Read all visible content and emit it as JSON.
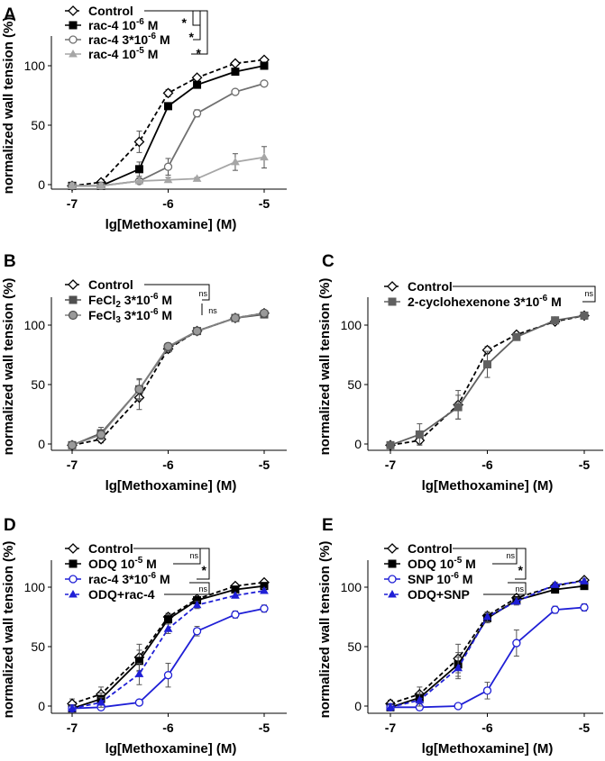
{
  "figure": {
    "colors": {
      "black": "#000000",
      "gray": "#707070",
      "light_gray": "#a6a6a6",
      "blue": "#1f1fd6",
      "white": "#ffffff"
    }
  },
  "chart_data": [
    {
      "panel": "A",
      "type": "line",
      "xlabel": "lg[Methoxamine] (M)",
      "ylabel": "normalized wall tension (%)",
      "xlim": [
        -7,
        -5
      ],
      "ylim": [
        -5,
        120
      ],
      "xticks": [
        "-7",
        "-6",
        "-5"
      ],
      "yticks": [
        "0",
        "50",
        "100"
      ],
      "x": [
        -7,
        -6.699,
        -6.301,
        -6,
        -5.699,
        -5.301,
        -5
      ],
      "series": [
        {
          "name": "Control",
          "sup": "",
          "tail": "",
          "marker": "diamond-open",
          "color": "#000000",
          "dash": true,
          "values": [
            -1,
            2,
            36,
            77,
            90,
            102,
            105
          ],
          "errors": [
            1,
            1,
            9,
            3,
            2,
            1,
            1
          ]
        },
        {
          "name": "rac-4 10",
          "sup": "-6",
          "tail": " M",
          "marker": "square-filled",
          "color": "#000000",
          "dash": false,
          "values": [
            -1,
            -1,
            13,
            66,
            84,
            95,
            100
          ],
          "errors": [
            1,
            1,
            6,
            2,
            2,
            1,
            1
          ]
        },
        {
          "name": "rac-4 3*10",
          "sup": "-6",
          "tail": " M",
          "marker": "circle-open",
          "color": "#707070",
          "dash": false,
          "values": [
            -1,
            -1,
            3,
            15,
            60,
            78,
            85
          ],
          "errors": [
            1,
            1,
            2,
            7,
            3,
            2,
            2
          ]
        },
        {
          "name": "rac-4 10",
          "sup": "-5",
          "tail": " M",
          "marker": "triangle-filled",
          "color": "#a6a6a6",
          "dash": false,
          "values": [
            -1,
            -1,
            3,
            4,
            5,
            19,
            23
          ],
          "errors": [
            1,
            1,
            2,
            2,
            1,
            7,
            9
          ]
        }
      ],
      "significance": [
        "*",
        "*",
        "*"
      ]
    },
    {
      "panel": "B",
      "type": "line",
      "xlabel": "lg[Methoxamine] (M)",
      "ylabel": "normalized wall tension (%)",
      "xlim": [
        -7,
        -5
      ],
      "ylim": [
        -5,
        120
      ],
      "xticks": [
        "-7",
        "-6",
        "-5"
      ],
      "yticks": [
        "0",
        "50",
        "100"
      ],
      "x": [
        -7,
        -6.699,
        -6.301,
        -6,
        -5.699,
        -5.301,
        -5
      ],
      "series": [
        {
          "name": "Control",
          "sup": "",
          "tail": "",
          "marker": "diamond-open",
          "color": "#000000",
          "dash": true,
          "values": [
            -1,
            4,
            39,
            80,
            95,
            106,
            110
          ],
          "errors": [
            1,
            3,
            10,
            3,
            2,
            2,
            1
          ]
        },
        {
          "name": "FeCl",
          "sub": "2",
          "sup": "-6",
          "tail": " M",
          "pre_sup": " 3*10",
          "marker": "square-filled",
          "color": "#505050",
          "dash": false,
          "values": [
            -1,
            9,
            46,
            81,
            95,
            106,
            109
          ],
          "errors": [
            1,
            5,
            8,
            3,
            2,
            2,
            1
          ]
        },
        {
          "name": "FeCl",
          "sub": "3",
          "sup": "-6",
          "tail": " M",
          "pre_sup": " 3*10",
          "marker": "circle-gray",
          "color": "#808080",
          "dash": false,
          "values": [
            -1,
            8,
            46,
            82,
            95,
            106,
            110
          ],
          "errors": [
            1,
            4,
            9,
            3,
            2,
            2,
            1
          ]
        }
      ],
      "significance": [
        "ns",
        "ns"
      ]
    },
    {
      "panel": "C",
      "type": "line",
      "xlabel": "lg[Methoxamine] (M)",
      "ylabel": "normalized wall tension (%)",
      "xlim": [
        -7,
        -5
      ],
      "ylim": [
        -5,
        120
      ],
      "xticks": [
        "-7",
        "-6",
        "-5"
      ],
      "yticks": [
        "0",
        "50",
        "100"
      ],
      "x": [
        -7,
        -6.699,
        -6.301,
        -6,
        -5.699,
        -5.301,
        -5
      ],
      "series": [
        {
          "name": "Control",
          "sup": "",
          "tail": "",
          "marker": "diamond-open",
          "color": "#000000",
          "dash": true,
          "values": [
            -1,
            3,
            33,
            79,
            92,
            103,
            108
          ],
          "errors": [
            1,
            3,
            12,
            3,
            2,
            2,
            2
          ]
        },
        {
          "name": "2-cyclohexenone 3*10",
          "sup": "-6",
          "tail": " M",
          "marker": "square-filled",
          "color": "#606060",
          "dash": false,
          "values": [
            -1,
            8,
            31,
            67,
            90,
            104,
            108
          ],
          "errors": [
            1,
            9,
            10,
            11,
            2,
            2,
            3
          ]
        }
      ],
      "significance": [
        "ns"
      ]
    },
    {
      "panel": "D",
      "type": "line",
      "xlabel": "lg[Methoxamine] (M)",
      "ylabel": "normalized wall tension (%)",
      "xlim": [
        -7,
        -5
      ],
      "ylim": [
        -5,
        120
      ],
      "xticks": [
        "-7",
        "-6",
        "-5"
      ],
      "yticks": [
        "0",
        "50",
        "100"
      ],
      "x": [
        -7,
        -6.699,
        -6.301,
        -6,
        -5.699,
        -5.301,
        -5
      ],
      "series": [
        {
          "name": "Control",
          "sup": "",
          "tail": "",
          "marker": "diamond-open",
          "color": "#000000",
          "dash": true,
          "values": [
            2,
            10,
            41,
            75,
            90,
            101,
            104
          ],
          "errors": [
            4,
            6,
            11,
            3,
            2,
            2,
            1
          ]
        },
        {
          "name": "ODQ 10",
          "sup": "-5",
          "tail": " M",
          "marker": "square-filled",
          "color": "#000000",
          "dash": false,
          "values": [
            -2,
            6,
            38,
            73,
            89,
            98,
            101
          ],
          "errors": [
            2,
            5,
            9,
            4,
            3,
            2,
            2
          ]
        },
        {
          "name": "rac-4 3*10",
          "sup": "-6",
          "tail": " M",
          "marker": "circle-open",
          "color": "#1f1fd6",
          "dash": false,
          "values": [
            -2,
            -1,
            3,
            26,
            63,
            77,
            82
          ],
          "errors": [
            1,
            1,
            2,
            10,
            4,
            3,
            3
          ]
        },
        {
          "name": "ODQ+rac-4",
          "sup": "",
          "tail": "",
          "marker": "triangle-filled",
          "color": "#1f1fd6",
          "dash": true,
          "values": [
            -2,
            3,
            27,
            65,
            85,
            93,
            97
          ],
          "errors": [
            2,
            4,
            9,
            4,
            3,
            2,
            2
          ]
        }
      ],
      "significance": [
        "ns",
        "*",
        "ns"
      ]
    },
    {
      "panel": "E",
      "type": "line",
      "xlabel": "lg[Methoxamine] (M)",
      "ylabel": "normalized wall tension (%)",
      "xlim": [
        -7,
        -5
      ],
      "ylim": [
        -5,
        120
      ],
      "xticks": [
        "-7",
        "-6",
        "-5"
      ],
      "yticks": [
        "0",
        "50",
        "100"
      ],
      "x": [
        -7,
        -6.699,
        -6.301,
        -6,
        -5.699,
        -5.301,
        -5
      ],
      "series": [
        {
          "name": "Control",
          "sup": "",
          "tail": "",
          "marker": "diamond-open",
          "color": "#000000",
          "dash": true,
          "values": [
            2,
            10,
            40,
            76,
            91,
            101,
            106
          ],
          "errors": [
            3,
            6,
            12,
            3,
            2,
            2,
            2
          ]
        },
        {
          "name": "ODQ 10",
          "sup": "-5",
          "tail": " M",
          "marker": "square-filled",
          "color": "#000000",
          "dash": false,
          "values": [
            -1,
            7,
            35,
            74,
            89,
            98,
            101
          ],
          "errors": [
            2,
            5,
            10,
            4,
            3,
            2,
            2
          ]
        },
        {
          "name": "SNP 10",
          "sup": "-6",
          "tail": " M",
          "marker": "circle-open",
          "color": "#1f1fd6",
          "dash": false,
          "values": [
            -1,
            -1,
            0,
            13,
            53,
            81,
            83
          ],
          "errors": [
            1,
            1,
            1,
            7,
            11,
            3,
            3
          ]
        },
        {
          "name": "ODQ+SNP",
          "sup": "",
          "tail": "",
          "marker": "triangle-filled",
          "color": "#1f1fd6",
          "dash": true,
          "values": [
            -1,
            5,
            32,
            75,
            88,
            102,
            105
          ],
          "errors": [
            2,
            5,
            9,
            4,
            3,
            2,
            2
          ]
        }
      ],
      "significance": [
        "ns",
        "*",
        "ns"
      ]
    }
  ]
}
